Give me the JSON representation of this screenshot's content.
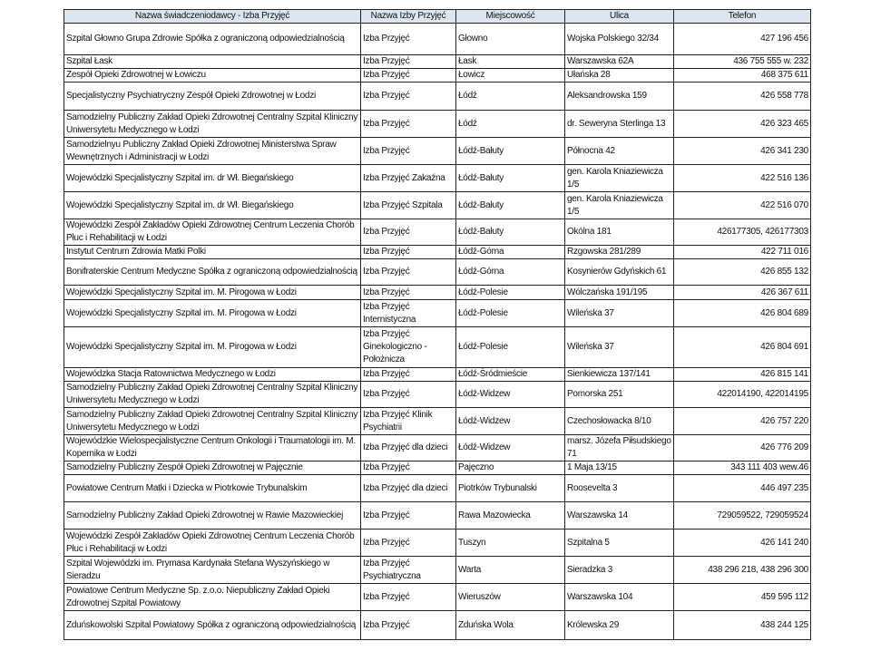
{
  "table": {
    "headers": [
      "Nazwa świadczeniodawcy - Izba Przyjęć",
      "Nazwa Izby Przyjęć",
      "Miejscowość",
      "Ulica",
      "Telefon"
    ],
    "header_bg": "#dce6f1",
    "rows": [
      [
        "Szpital Głowno Grupa Zdrowie Spółka z ograniczoną odpowiedzialnością",
        "Izba Przyjęć",
        "Głowno",
        "Wojska Polskiego 32/34",
        "427 196 456"
      ],
      [
        "Szpital Łask",
        "Izba Przyjęć",
        "Łask",
        "Warszawska 62A",
        "436 755 555 w. 232"
      ],
      [
        "Zespół Opieki Zdrowotnej w Łowiczu",
        "Izba Przyjęć",
        "Łowicz",
        "Ułańska 28",
        "468 375 611"
      ],
      [
        "Specjalistyczny Psychiatryczny Zespół Opieki Zdrowotnej w Łodzi",
        "Izba Przyjęć",
        "Łódź",
        "Aleksandrowska 159",
        "426 558 778"
      ],
      [
        "Samodzielny Publiczny Zakład Opieki Zdrowotnej Centralny Szpital Kliniczny Uniwersytetu Medycznego w Łodzi",
        "Izba Przyjęć",
        "Łódź",
        "dr. Seweryna Sterlinga 13",
        "426 323 465"
      ],
      [
        "Samodzielnyu Publiczny Zakład Opieki Zdrowotnej Ministerstwa Spraw Wewnętrznych i Administracji w Łodzi",
        "Izba Przyjęć",
        "Łódź-Bałuty",
        "Północna 42",
        "426 341 230"
      ],
      [
        "Wojewódzki Specjalistyczny Szpital im. dr Wł. Biegańskiego",
        "Izba Przyjęć Zakaźna",
        "Łódź-Bałuty",
        "gen. Karola Kniaziewicza 1/5",
        "422 516 136"
      ],
      [
        "Wojewódzki Specjalistyczny Szpital im. dr Wł. Biegańskiego",
        "Izba Przyjęć  Szpitala",
        "Łódź-Bałuty",
        "gen. Karola Kniaziewicza 1/5",
        "422 516 070"
      ],
      [
        "Wojewódzki Zespół Zakładów Opieki Zdrowotnej Centrum Leczenia Chorób Płuc i Rehabilitacji w Łodzi",
        "Izba Przyjęć",
        "Łódź-Bałuty",
        "Okólna 181",
        "426177305, 426177303"
      ],
      [
        "Instytut Centrum Zdrowia Matki Polki",
        "Izba Przyjęć",
        "Łódź-Górna",
        "Rzgowska 281/289",
        "422 711 016"
      ],
      [
        "Bonifraterskie Centrum Medyczne Spółka z ograniczoną odpowiedzialnością",
        "Izba Przyjęć",
        "Łódź-Górna",
        "Kosynierów Gdyńskich 61",
        "426 855 132"
      ],
      [
        "Wojewódzki Specjalistyczny Szpital im. M. Pirogowa w Łodzi",
        "Izba Przyjęć",
        "Łódź-Polesie",
        "Wólczańska 191/195",
        "426 367 611"
      ],
      [
        "Wojewódzki Specjalistyczny Szpital im. M. Pirogowa w Łodzi",
        "Izba Przyjęć Internistyczna",
        "Łódź-Polesie",
        "Wileńska 37",
        "426 804 689"
      ],
      [
        "Wojewódzki Specjalistyczny Szpital im. M. Pirogowa w Łodzi",
        "Izba Przyjęć Ginekologiczno - Położnicza",
        "Łódź-Polesie",
        "Wileńska 37",
        "426 804 691"
      ],
      [
        "Wojewódzka Stacja Ratownictwa Medycznego w Łodzi",
        "Izba Przyjęć",
        "Łódź-Śródmieście",
        "Sienkiewicza 137/141",
        "426 815 141"
      ],
      [
        "Samodzielny Publiczny Zakład Opieki Zdrowotnej Centralny Szpital Kliniczny Uniwersytetu Medycznego w Łodzi",
        "Izba Przyjęć",
        "Łódź-Widzew",
        "Pomorska 251",
        "422014190, 422014195"
      ],
      [
        "Samodzielny Publiczny Zakład Opieki Zdrowotnej Centralny Szpital Kliniczny Uniwersytetu Medycznego w Łodzi",
        "Izba Przyjęć Klinik Psychiatrii",
        "Łódź-Widzew",
        "Czechosłowacka 8/10",
        "426 757 220"
      ],
      [
        "Wojewódzkie Wielospecjalistyczne Centrum Onkologii i Traumatologii im. M. Kopernika w Łodzi",
        "Izba Przyjęć dla dzieci",
        "Łódź-Widzew",
        "marsz. Józefa Piłsudskiego 71",
        "426 776 209"
      ],
      [
        "Samodzielny Publiczny Zespół Opieki Zdrowotnej w Pajęcznie",
        "Izba Przyjęć",
        "Pajęczno",
        "1 Maja 13/15",
        "343 111 403 wew.46"
      ],
      [
        "Powiatowe Centrum Matki i Dziecka w Piotrkowie Trybunalskim",
        "Izba Przyjęć dla dzieci",
        "Piotrków Trybunalski",
        "Roosevelta 3",
        "446 497 235"
      ],
      [
        "Samodzielny Publiczny Zakład Opieki Zdrowotnej  w Rawie Mazowieckiej",
        "Izba Przyjęć",
        "Rawa Mazowiecka",
        "Warszawska  14",
        "729059522, 729059524"
      ],
      [
        "Wojewódzki Zespół Zakładów Opieki Zdrowotnej Centrum Leczenia Chorób Płuc i Rehabilitacji w Łodzi",
        "Izba Przyjęć",
        "Tuszyn",
        "Szpitalna 5",
        "426 141 240"
      ],
      [
        "Szpital Wojewódzki im. Prymasa Kardynała Stefana Wyszyńskiego w Sieradzu",
        "Izba Przyjęć Psychiatryczna",
        "Warta",
        "Sieradzka 3",
        "438 296 218, 438 296 300"
      ],
      [
        "Powiatowe Centrum Medyczne Sp. z.o.o. Niepubliczny Zakład Opieki Zdrowotnej Szpital Powiatowy",
        "Izba Przyjęć",
        "Wieruszów",
        "Warszawska 104",
        "459 595 112"
      ],
      [
        "Zduńskowolski Szpital Powiatowy Spółka z ograniczoną odpowiedzialnością",
        "Izba Przyjęć",
        "Zduńska Wola",
        "Królewska 29",
        "438 244 125"
      ]
    ]
  }
}
